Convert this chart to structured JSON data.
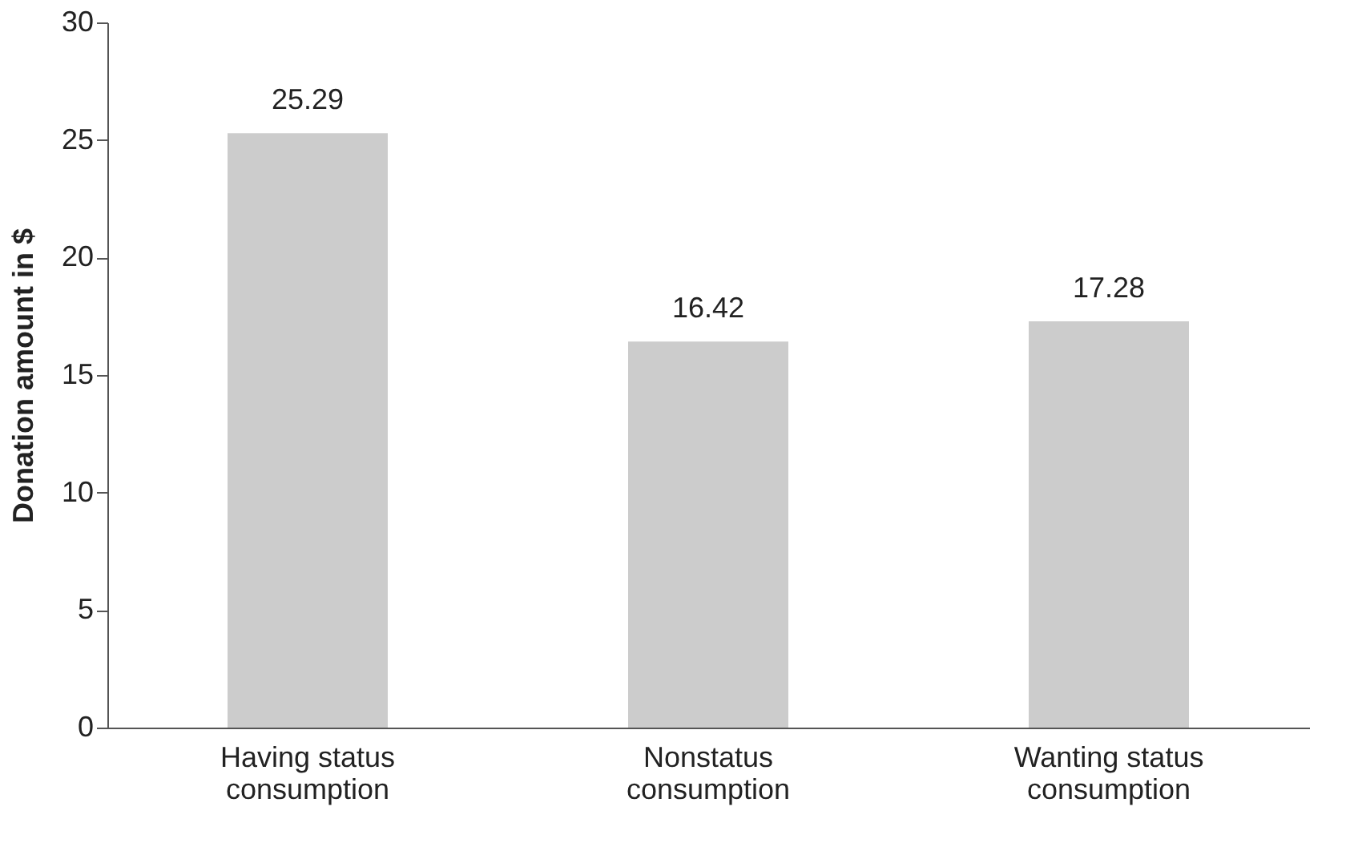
{
  "chart_data": {
    "type": "bar",
    "ylabel": "Donation amount in $",
    "categories": [
      "Having status consumption",
      "Nonstatus consumption",
      "Wanting status consumption"
    ],
    "values": [
      25.29,
      16.42,
      17.28
    ],
    "color": "#cccccc",
    "ylim": [
      0,
      30
    ],
    "yticks": [
      0,
      5,
      10,
      15,
      20,
      25,
      30
    ],
    "grid": false,
    "data_labels": true
  }
}
